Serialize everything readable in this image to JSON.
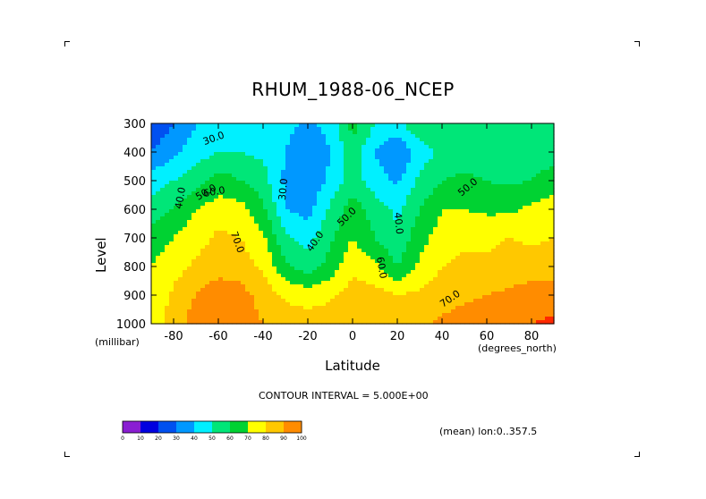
{
  "chart_data": {
    "type": "heatmap",
    "title": "RHUM_1988-06_NCEP",
    "xlabel": "Latitude",
    "ylabel": "Level",
    "x_unit": "(degrees_north)",
    "y_unit": "(millibar)",
    "xlim": [
      -90,
      90
    ],
    "ylim": [
      1000,
      300
    ],
    "x_ticks": [
      -80,
      -60,
      -40,
      -20,
      0,
      20,
      40,
      60,
      80
    ],
    "y_ticks": [
      300,
      400,
      500,
      600,
      700,
      800,
      900,
      1000
    ],
    "x": [
      -90,
      -80,
      -70,
      -60,
      -50,
      -40,
      -30,
      -20,
      -10,
      0,
      10,
      20,
      30,
      40,
      50,
      60,
      70,
      80,
      90
    ],
    "y": [
      300,
      400,
      500,
      600,
      700,
      800,
      900,
      1000
    ],
    "z": [
      [
        10,
        20,
        30,
        34,
        36,
        38,
        34,
        28,
        34,
        55,
        40,
        38,
        48,
        45,
        45,
        45,
        45,
        42,
        45
      ],
      [
        20,
        28,
        35,
        40,
        40,
        38,
        30,
        20,
        30,
        45,
        30,
        20,
        35,
        42,
        45,
        45,
        45,
        45,
        45
      ],
      [
        35,
        40,
        45,
        55,
        50,
        44,
        28,
        22,
        32,
        45,
        35,
        28,
        42,
        50,
        52,
        50,
        48,
        50,
        55
      ],
      [
        45,
        50,
        60,
        65,
        64,
        52,
        30,
        26,
        42,
        55,
        45,
        38,
        50,
        60,
        60,
        58,
        58,
        62,
        65
      ],
      [
        55,
        60,
        66,
        72,
        70,
        62,
        42,
        36,
        48,
        60,
        50,
        42,
        56,
        65,
        68,
        68,
        70,
        68,
        70
      ],
      [
        60,
        66,
        72,
        76,
        75,
        68,
        52,
        44,
        54,
        68,
        62,
        50,
        62,
        70,
        72,
        72,
        74,
        76,
        75
      ],
      [
        62,
        72,
        80,
        86,
        84,
        76,
        68,
        66,
        68,
        74,
        74,
        70,
        72,
        76,
        78,
        80,
        82,
        84,
        84
      ],
      [
        65,
        75,
        85,
        88,
        86,
        80,
        76,
        74,
        76,
        80,
        80,
        78,
        78,
        82,
        84,
        86,
        86,
        90,
        92
      ]
    ],
    "colorbar": {
      "levels": [
        0,
        10,
        20,
        30,
        40,
        50,
        60,
        70,
        80,
        90,
        100
      ],
      "colors": [
        "#8a1ed2",
        "#0000e0",
        "#0050f0",
        "#0098ff",
        "#00f0ff",
        "#00e678",
        "#00d232",
        "#ffff00",
        "#ffc800",
        "#ff8c00",
        "#ff2800",
        "#e00000"
      ]
    },
    "contour_labels": [
      "30.0",
      "30.0",
      "40.0",
      "40.0",
      "40.0",
      "50.0",
      "50.0",
      "50.0",
      "60.0",
      "60.0",
      "70.0",
      "70.0"
    ],
    "grid": false
  },
  "annotations": {
    "contour_interval": "CONTOUR INTERVAL = 5.000E+00",
    "mean_note": "(mean) lon:0..357.5"
  }
}
